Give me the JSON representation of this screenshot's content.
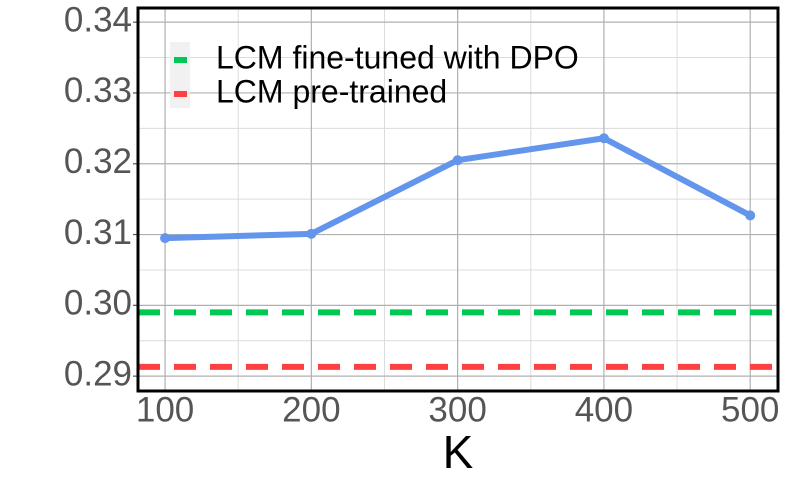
{
  "chart_data": {
    "type": "line",
    "x_label": "K",
    "x": [
      100,
      200,
      300,
      400,
      500
    ],
    "series": [
      {
        "color": "#6495ed",
        "values": [
          0.3095,
          0.3101,
          0.3205,
          0.3236,
          0.3127
        ]
      }
    ],
    "hlines": [
      {
        "name": "LCM fine-tuned with DPO",
        "color": "#00c853",
        "value": 0.299
      },
      {
        "name": "LCM pre-trained",
        "color": "#ff4040",
        "value": 0.2913
      }
    ],
    "xlim": [
      81.5,
      519
    ],
    "ylim": [
      0.2879,
      0.342
    ],
    "xticks": [
      100,
      200,
      300,
      400,
      500
    ],
    "yticks": [
      0.29,
      {
        "value": 0.3,
        "label": "0.30"
      },
      0.31,
      0.32,
      0.33,
      0.34
    ],
    "x_minor_ticks": [
      150,
      250,
      350,
      450
    ],
    "y_minor_ticks": [
      0.295,
      0.305,
      0.315,
      0.325,
      0.335
    ],
    "grid": true,
    "legend_position": "upper-left"
  }
}
